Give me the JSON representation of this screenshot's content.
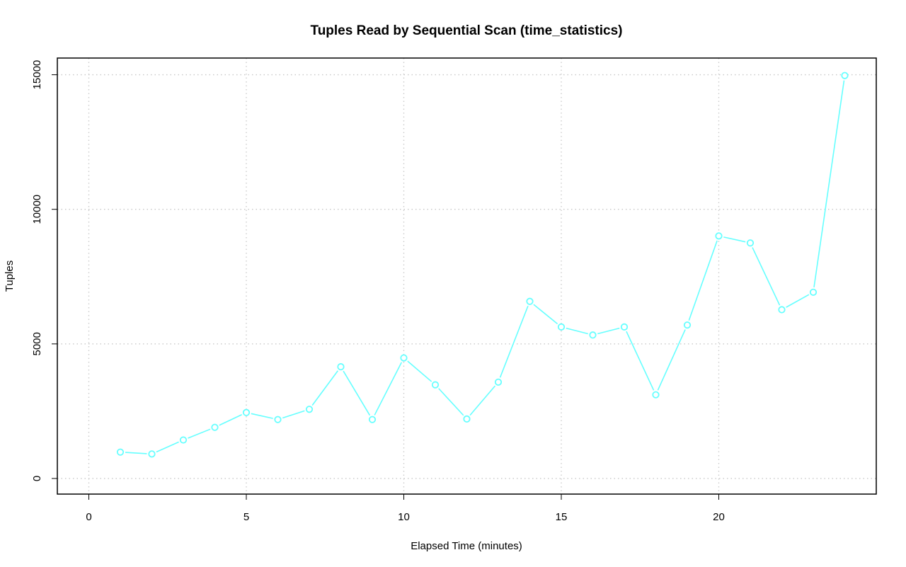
{
  "chart_data": {
    "type": "line",
    "title": "Tuples Read by Sequential Scan (time_statistics)",
    "xlabel": "Elapsed Time (minutes)",
    "ylabel": "Tuples",
    "xlim": [
      -1,
      25
    ],
    "ylim": [
      -580,
      15620
    ],
    "x_ticks": [
      0,
      5,
      10,
      15,
      20
    ],
    "y_ticks": [
      0,
      5000,
      10000,
      15000
    ],
    "x_tick_labels": [
      "0",
      "5",
      "10",
      "15",
      "20"
    ],
    "y_tick_labels": [
      "0",
      "5000",
      "10000",
      "15000"
    ],
    "grid": true,
    "legend": "none",
    "series": [
      {
        "color": "#66ffff",
        "marker": "open-circle",
        "x": [
          1,
          2,
          3,
          4,
          5,
          6,
          7,
          8,
          9,
          10,
          11,
          12,
          13,
          14,
          15,
          16,
          17,
          18,
          19,
          20,
          21,
          22,
          23,
          24
        ],
        "y": [
          980,
          910,
          1430,
          1900,
          2450,
          2190,
          2570,
          4150,
          2190,
          4480,
          3480,
          2210,
          3580,
          6580,
          5630,
          5330,
          5630,
          3110,
          5700,
          9010,
          8750,
          6270,
          6920,
          14970
        ]
      }
    ]
  }
}
